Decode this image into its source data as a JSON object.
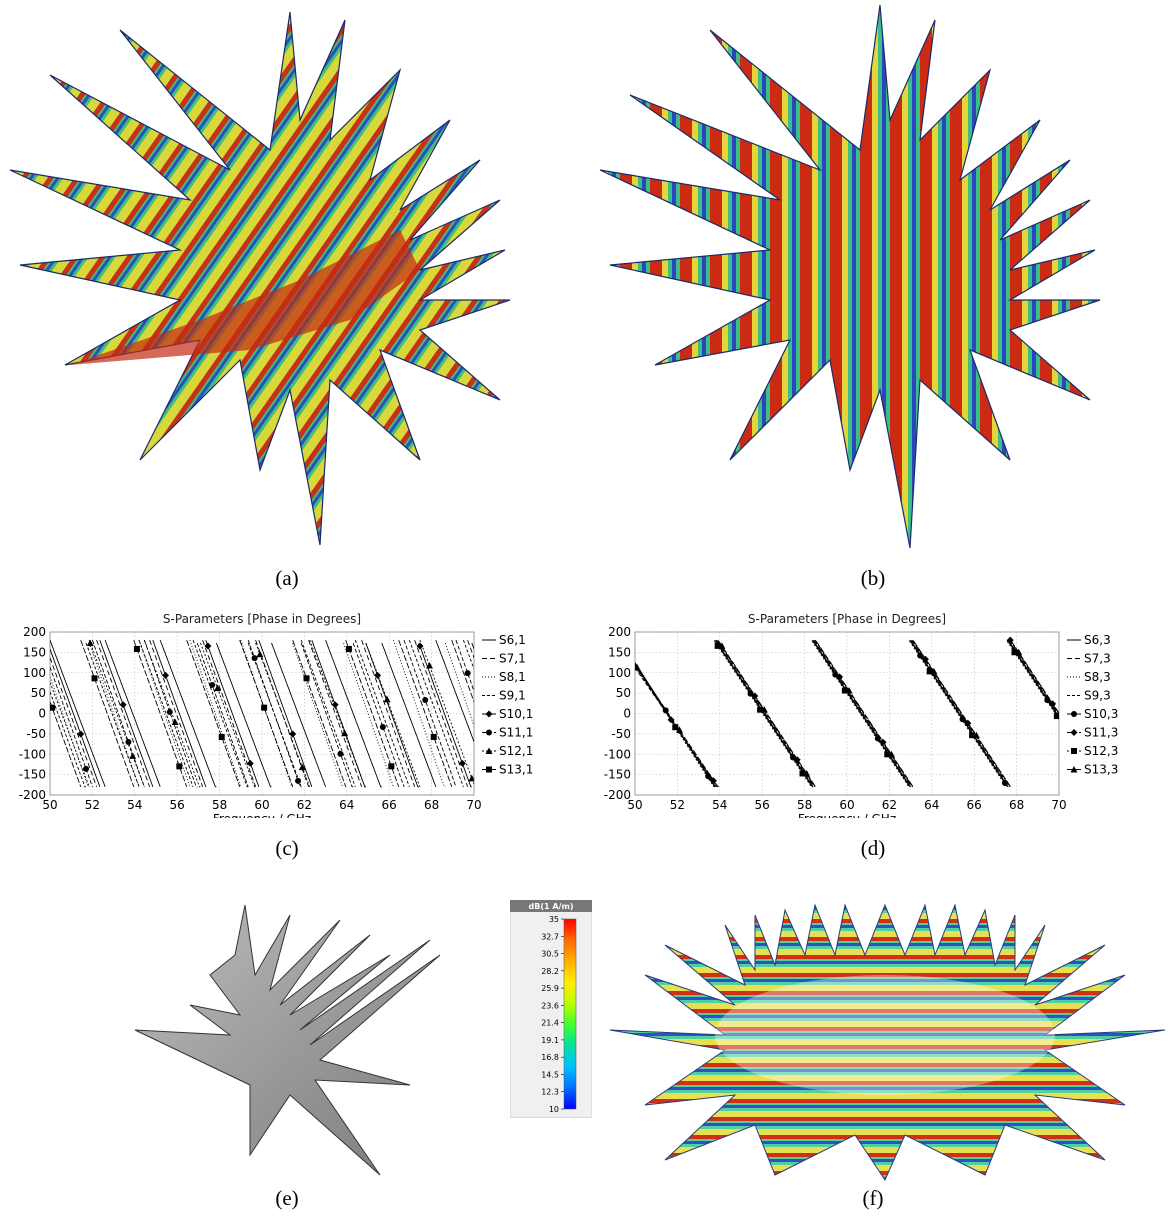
{
  "captions": {
    "a": "(a)",
    "b": "(b)",
    "c": "(c)",
    "d": "(d)",
    "e": "(e)",
    "f": "(f)"
  },
  "colorbar": {
    "title": "dB(1 A/m)",
    "ticks": [
      "35",
      "32.7",
      "30.5",
      "28.2",
      "25.9",
      "23.6",
      "21.4",
      "19.1",
      "16.8",
      "14.5",
      "12.3",
      "10"
    ],
    "colors": [
      "#ff0000",
      "#ff6a00",
      "#ffb000",
      "#ffee00",
      "#b8ff00",
      "#40ff30",
      "#00e0a0",
      "#00c0ff",
      "#0070ff",
      "#0000ff"
    ]
  },
  "chart_data": [
    {
      "type": "line",
      "title": "S-Parameters [Phase in Degrees]",
      "xlabel": "Frequency / GHz",
      "ylabel": "",
      "xlim": [
        50,
        70
      ],
      "ylim": [
        -200,
        200
      ],
      "xticks": [
        "50",
        "52",
        "54",
        "56",
        "58",
        "60",
        "62",
        "64",
        "66",
        "68",
        "70"
      ],
      "yticks": [
        "200",
        "150",
        "100",
        "50",
        "0",
        "-50",
        "-100",
        "-150",
        "-200"
      ],
      "grid": true,
      "legend_position": "right",
      "series": [
        {
          "name": "S6,1",
          "marker": "none",
          "dash": "",
          "start": 160,
          "period": 2.6,
          "offset": 0.0
        },
        {
          "name": "S7,1",
          "marker": "none",
          "dash": "5 3",
          "start": 120,
          "period": 2.5,
          "offset": 0.3
        },
        {
          "name": "S8,1",
          "marker": "none",
          "dash": "1 2",
          "start": -20,
          "period": 2.4,
          "offset": 0.6
        },
        {
          "name": "S9,1",
          "marker": "none",
          "dash": "3 2",
          "start": 60,
          "period": 2.55,
          "offset": 0.9
        },
        {
          "name": "S10,1",
          "marker": "diamond",
          "dash": "",
          "start": 130,
          "period": 2.5,
          "offset": 0.15
        },
        {
          "name": "S11,1",
          "marker": "circle",
          "dash": "4 2",
          "start": -130,
          "period": 2.45,
          "offset": 0.45
        },
        {
          "name": "S12,1",
          "marker": "triangle",
          "dash": "2 2",
          "start": 55,
          "period": 2.6,
          "offset": 0.75
        },
        {
          "name": "S13,1",
          "marker": "square",
          "dash": "6 2",
          "start": -20,
          "period": 2.5,
          "offset": 1.05
        }
      ]
    },
    {
      "type": "line",
      "title": "S-Parameters [Phase in Degrees]",
      "xlabel": "Frequency / GHz",
      "ylabel": "",
      "xlim": [
        50,
        70
      ],
      "ylim": [
        -200,
        200
      ],
      "xticks": [
        "50",
        "52",
        "54",
        "56",
        "58",
        "60",
        "62",
        "64",
        "66",
        "68",
        "70"
      ],
      "yticks": [
        "200",
        "150",
        "100",
        "50",
        "0",
        "-50",
        "-100",
        "-150",
        "-200"
      ],
      "grid": true,
      "legend_position": "right",
      "wrap_points": [
        53.8,
        58.4,
        63.0,
        67.6
      ],
      "series": [
        {
          "name": "S6,3",
          "marker": "none",
          "dash": "",
          "start": 120,
          "jitter": 0
        },
        {
          "name": "S7,3",
          "marker": "none",
          "dash": "5 3",
          "start": 118,
          "jitter": 0.05
        },
        {
          "name": "S8,3",
          "marker": "none",
          "dash": "1 2",
          "start": 122,
          "jitter": -0.05
        },
        {
          "name": "S9,3",
          "marker": "none",
          "dash": "3 2",
          "start": 116,
          "jitter": 0.08
        },
        {
          "name": "S10,3",
          "marker": "circle",
          "dash": "",
          "start": 125,
          "jitter": -0.03
        },
        {
          "name": "S11,3",
          "marker": "diamond",
          "dash": "4 2",
          "start": 112,
          "jitter": 0.1
        },
        {
          "name": "S12,3",
          "marker": "square",
          "dash": "2 2",
          "start": 119,
          "jitter": -0.08
        },
        {
          "name": "S13,3",
          "marker": "triangle",
          "dash": "6 2",
          "start": 121,
          "jitter": 0.12
        }
      ]
    }
  ]
}
